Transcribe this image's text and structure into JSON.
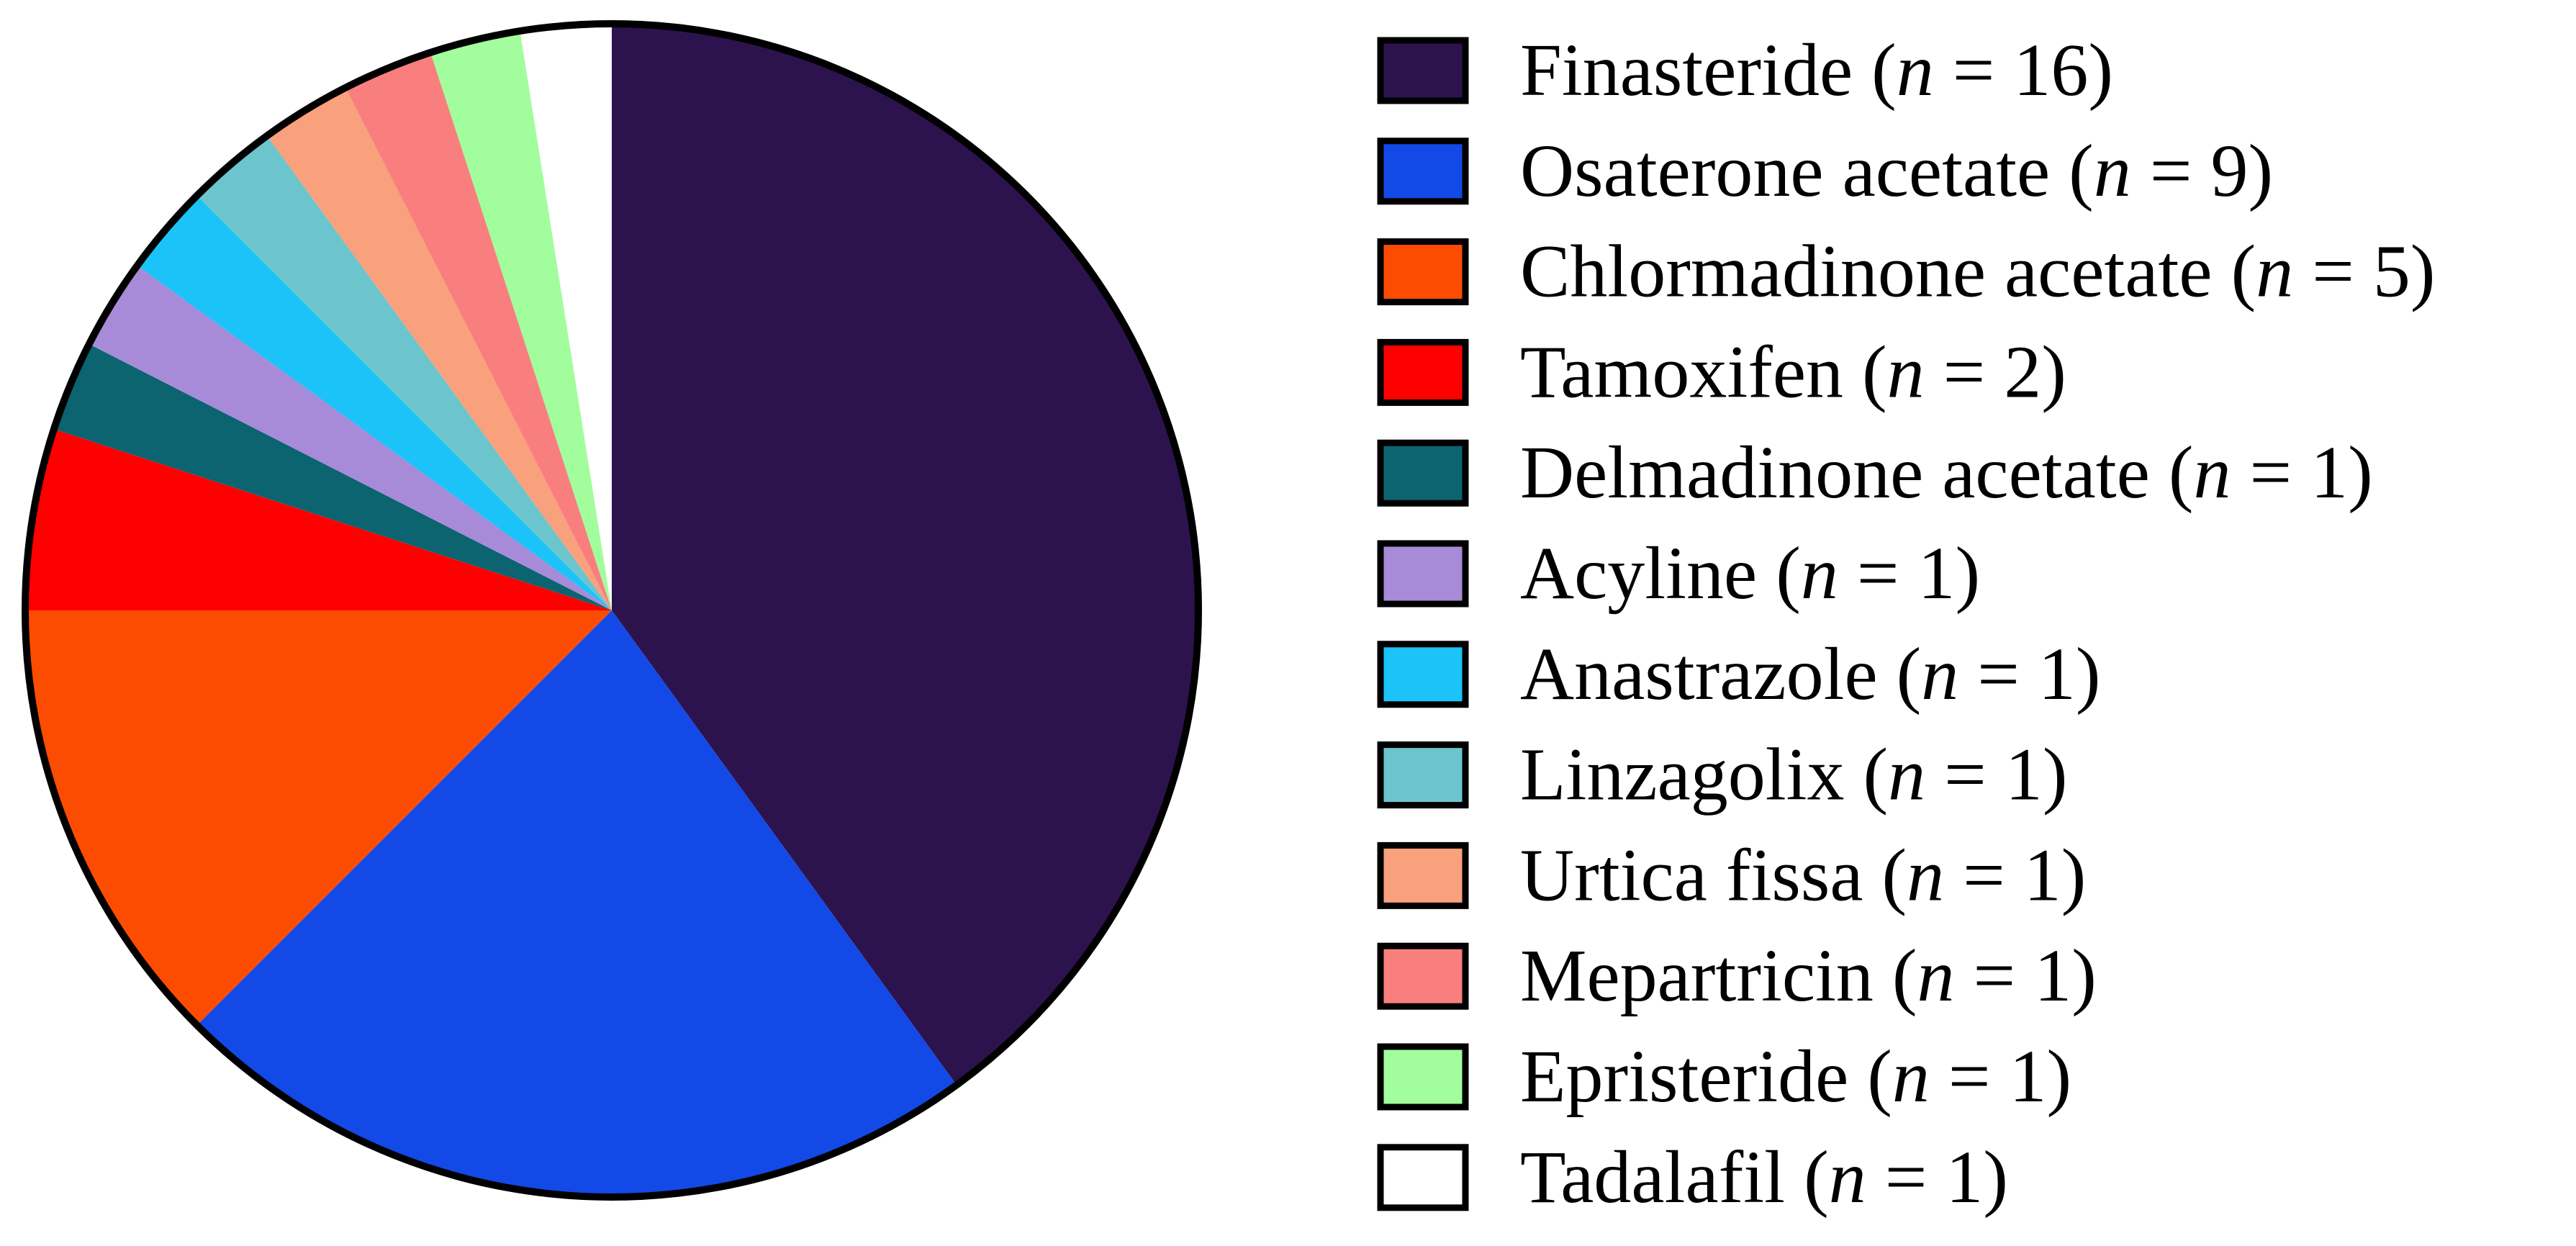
{
  "chart_data": {
    "type": "pie",
    "start_angle": "top",
    "direction": "clockwise",
    "outline": "black",
    "legend_position": "right",
    "slices": [
      {
        "label": "Finasteride",
        "n_text": "16",
        "value": 16,
        "color": "#2c134e"
      },
      {
        "label": "Osaterone acetate",
        "n_text": "9",
        "value": 9,
        "color": "#1349e6"
      },
      {
        "label": "Chlormadinone acetate",
        "n_text": "5",
        "value": 5,
        "color": "#fb4c02"
      },
      {
        "label": "Tamoxifen",
        "n_text": "2",
        "value": 2,
        "color": "#ff0000"
      },
      {
        "label": "Delmadinone acetate",
        "n_text": "1",
        "value": 1,
        "color": "#0b6470"
      },
      {
        "label": "Acyline",
        "n_text": "1",
        "value": 1,
        "color": "#a78bd8"
      },
      {
        "label": "Anastrazole",
        "n_text": "1",
        "value": 1,
        "color": "#1bc3f9"
      },
      {
        "label": "Linzagolix",
        "n_text": "1",
        "value": 1,
        "color": "#6cc5cc"
      },
      {
        "label": "Urtica fissa",
        "n_text": "1",
        "value": 1,
        "color": "#f9a07c"
      },
      {
        "label": "Mepartricin",
        "n_text": "1",
        "value": 1,
        "color": "#f97f7f"
      },
      {
        "label": "Epristeride",
        "n_text": "1",
        "value": 1,
        "color": "#a2fd9d"
      },
      {
        "label": "Tadalafil",
        "n_text": "1",
        "value": 1,
        "color": "#ffffff"
      }
    ]
  }
}
